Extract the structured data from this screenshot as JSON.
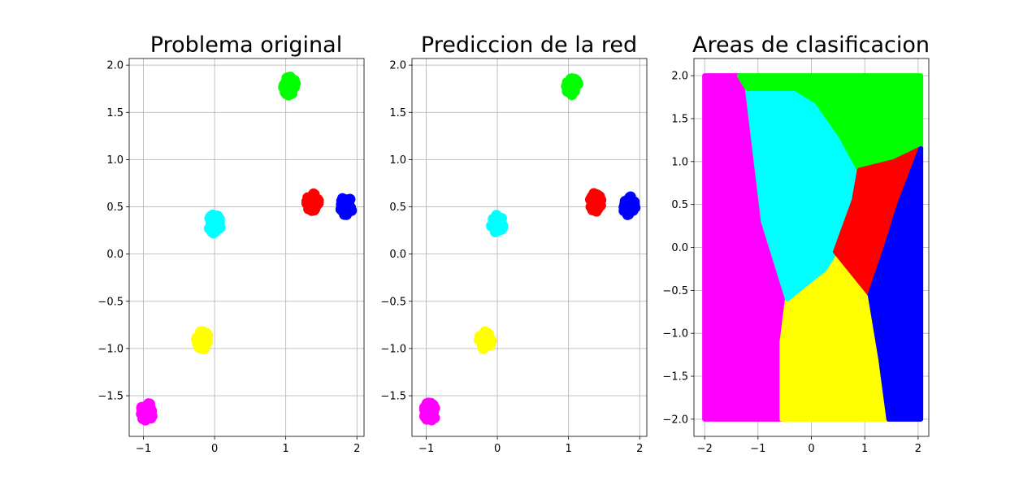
{
  "colors": {
    "magenta": "#ff00ff",
    "yellow": "#ffff00",
    "cyan": "#00ffff",
    "green": "#00ff00",
    "red": "#ff0000",
    "blue": "#0000ff"
  },
  "chart_data": [
    {
      "type": "scatter",
      "title": "Problema original",
      "xlabel": "",
      "ylabel": "",
      "xlim": [
        -1.2,
        2.1
      ],
      "ylim": [
        -1.93,
        2.07
      ],
      "grid": true,
      "xticks": [
        -1,
        0,
        1,
        2
      ],
      "xtick_labels": [
        "−1",
        "0",
        "1",
        "2"
      ],
      "yticks": [
        -1.5,
        -1.0,
        -0.5,
        0.0,
        0.5,
        1.0,
        1.5,
        2.0
      ],
      "ytick_labels": [
        "−1.5",
        "−1.0",
        "−0.5",
        "0.0",
        "0.5",
        "1.0",
        "1.5",
        "2.0"
      ],
      "clusters": [
        {
          "color": "magenta",
          "x": -0.95,
          "y": -1.67
        },
        {
          "color": "yellow",
          "x": -0.17,
          "y": -0.91
        },
        {
          "color": "cyan",
          "x": 0.0,
          "y": 0.32
        },
        {
          "color": "green",
          "x": 1.05,
          "y": 1.78
        },
        {
          "color": "red",
          "x": 1.38,
          "y": 0.55
        },
        {
          "color": "blue",
          "x": 1.85,
          "y": 0.51
        }
      ]
    },
    {
      "type": "scatter",
      "title": "Prediccion de la red",
      "xlabel": "",
      "ylabel": "",
      "xlim": [
        -1.2,
        2.1
      ],
      "ylim": [
        -1.93,
        2.07
      ],
      "grid": true,
      "xticks": [
        -1,
        0,
        1,
        2
      ],
      "xtick_labels": [
        "−1",
        "0",
        "1",
        "2"
      ],
      "yticks": [
        -1.5,
        -1.0,
        -0.5,
        0.0,
        0.5,
        1.0,
        1.5,
        2.0
      ],
      "ytick_labels": [
        "−1.5",
        "−1.0",
        "−0.5",
        "0.0",
        "0.5",
        "1.0",
        "1.5",
        "2.0"
      ],
      "clusters": [
        {
          "color": "magenta",
          "x": -0.95,
          "y": -1.67
        },
        {
          "color": "yellow",
          "x": -0.17,
          "y": -0.91
        },
        {
          "color": "cyan",
          "x": 0.0,
          "y": 0.32
        },
        {
          "color": "green",
          "x": 1.05,
          "y": 1.78
        },
        {
          "color": "red",
          "x": 1.38,
          "y": 0.55
        },
        {
          "color": "blue",
          "x": 1.85,
          "y": 0.51
        }
      ]
    },
    {
      "type": "area",
      "title": "Areas de clasificacion",
      "xlabel": "",
      "ylabel": "",
      "xlim": [
        -2.2,
        2.2
      ],
      "ylim": [
        -2.2,
        2.2
      ],
      "grid": true,
      "xticks": [
        -2,
        -1,
        0,
        1,
        2
      ],
      "xtick_labels": [
        "−2",
        "−1",
        "0",
        "1",
        "2"
      ],
      "yticks": [
        -2.0,
        -1.5,
        -1.0,
        -0.5,
        0.0,
        0.5,
        1.0,
        1.5,
        2.0
      ],
      "ytick_labels": [
        "−2.0",
        "−1.5",
        "−1.0",
        "−0.5",
        "0.0",
        "0.5",
        "1.0",
        "1.5",
        "2.0"
      ],
      "regions": [
        {
          "color": "magenta",
          "polygon": [
            [
              -2,
              -2
            ],
            [
              -0.55,
              -2
            ],
            [
              -0.55,
              -1.1
            ],
            [
              -0.45,
              -0.6
            ],
            [
              -0.9,
              0.3
            ],
            [
              -1.2,
              1.85
            ],
            [
              -1.35,
              2
            ],
            [
              -2,
              2
            ]
          ]
        },
        {
          "color": "yellow",
          "polygon": [
            [
              -0.55,
              -2
            ],
            [
              1.45,
              -2
            ],
            [
              1.3,
              -1.3
            ],
            [
              1.1,
              -0.55
            ],
            [
              0.45,
              -0.05
            ],
            [
              0.25,
              -0.25
            ],
            [
              -0.05,
              -0.4
            ],
            [
              -0.45,
              -0.6
            ],
            [
              -0.55,
              -1.1
            ]
          ]
        },
        {
          "color": "cyan",
          "polygon": [
            [
              -0.45,
              -0.6
            ],
            [
              -0.05,
              -0.4
            ],
            [
              0.25,
              -0.25
            ],
            [
              0.45,
              -0.05
            ],
            [
              0.8,
              0.55
            ],
            [
              0.9,
              0.9
            ],
            [
              0.55,
              1.3
            ],
            [
              0.1,
              1.7
            ],
            [
              -0.3,
              1.85
            ],
            [
              -1.2,
              1.85
            ],
            [
              -0.9,
              0.3
            ]
          ]
        },
        {
          "color": "green",
          "polygon": [
            [
              -1.35,
              2
            ],
            [
              2.05,
              2
            ],
            [
              2.05,
              1.15
            ],
            [
              1.55,
              1.0
            ],
            [
              0.9,
              0.9
            ],
            [
              0.55,
              1.3
            ],
            [
              0.1,
              1.7
            ],
            [
              -0.3,
              1.85
            ],
            [
              -1.2,
              1.85
            ]
          ]
        },
        {
          "color": "red",
          "polygon": [
            [
              0.9,
              0.9
            ],
            [
              1.55,
              1.0
            ],
            [
              2.05,
              1.15
            ],
            [
              1.65,
              0.5
            ],
            [
              1.4,
              0.0
            ],
            [
              1.1,
              -0.55
            ],
            [
              0.45,
              -0.05
            ],
            [
              0.8,
              0.55
            ]
          ]
        },
        {
          "color": "blue",
          "polygon": [
            [
              2.05,
              1.15
            ],
            [
              2.05,
              -2
            ],
            [
              1.45,
              -2
            ],
            [
              1.3,
              -1.3
            ],
            [
              1.1,
              -0.55
            ],
            [
              1.4,
              0.0
            ],
            [
              1.65,
              0.5
            ]
          ]
        }
      ]
    }
  ]
}
